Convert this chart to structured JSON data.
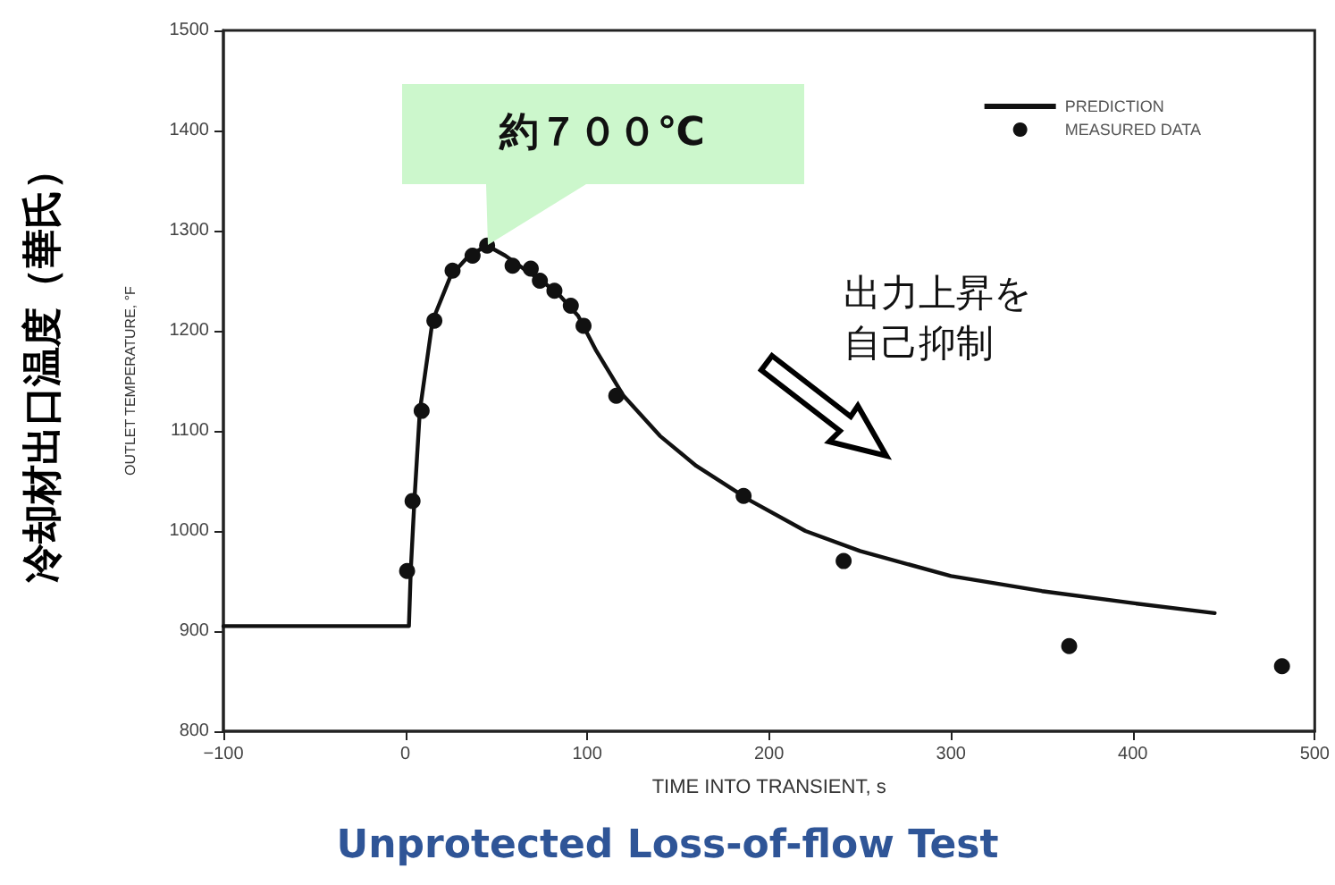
{
  "chart_data": {
    "type": "scatter",
    "title": "Unprotected Loss-of-flow Test",
    "xlabel": "TIME INTO TRANSIENT, s",
    "ylabel": "OUTLET TEMPERATURE, °F",
    "annotations": [
      {
        "text": "約７００℃",
        "x": 45,
        "y": 1285
      },
      "出力上昇を自己抑制",
      "冷却材出口温度（華氏）"
    ],
    "xlim": [
      -100,
      500
    ],
    "xticks": [
      -100,
      0,
      100,
      200,
      300,
      400,
      500
    ],
    "ylim": [
      800,
      1500
    ],
    "yticks": [
      800,
      900,
      1000,
      1100,
      1200,
      1300,
      1400,
      1500
    ],
    "grid": false,
    "legend": "top right",
    "series": [
      {
        "name": "PREDICTION",
        "type": "line",
        "color": "#111111",
        "marker": "none",
        "line_style": "solid",
        "x": [
          -100,
          2,
          3,
          5,
          8,
          15,
          25,
          35,
          45,
          55,
          65,
          75,
          85,
          95,
          105,
          120,
          140,
          160,
          190,
          220,
          250,
          300,
          350,
          400,
          445
        ],
        "values": [
          905,
          905,
          960,
          1030,
          1120,
          1210,
          1255,
          1275,
          1285,
          1275,
          1262,
          1250,
          1235,
          1215,
          1180,
          1135,
          1095,
          1065,
          1030,
          1000,
          980,
          955,
          940,
          928,
          918
        ]
      },
      {
        "name": "MEASURED DATA",
        "color": "#111111",
        "marker": "circle",
        "x": [
          1,
          4,
          9,
          16,
          26,
          37,
          45,
          59,
          69,
          74,
          82,
          91,
          98,
          116,
          186,
          241,
          365,
          482
        ],
        "values": [
          960,
          1030,
          1120,
          1210,
          1260,
          1275,
          1285,
          1265,
          1262,
          1250,
          1240,
          1225,
          1205,
          1135,
          1035,
          970,
          885,
          865
        ]
      }
    ]
  }
}
